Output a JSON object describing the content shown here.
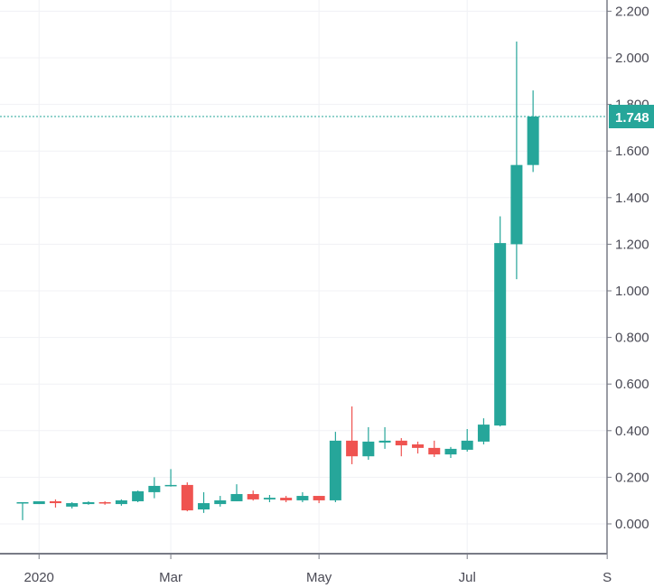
{
  "chart_data": {
    "type": "candlestick",
    "title": "",
    "xlabel": "",
    "ylabel": "",
    "ylim": [
      -0.08,
      2.25
    ],
    "grid": true,
    "colors": {
      "up": "#26a69a",
      "down": "#ef5350",
      "grid": "#f0f1f5",
      "axis": "#787b86",
      "text": "#4a4a55"
    },
    "yticks": [
      "0.000",
      "0.200",
      "0.400",
      "0.600",
      "0.800",
      "1.000",
      "1.200",
      "1.400",
      "1.600",
      "1.800",
      "2.000",
      "2.200"
    ],
    "yvalues": [
      0,
      0.2,
      0.4,
      0.6,
      0.8,
      1.0,
      1.2,
      1.4,
      1.6,
      1.8,
      2.0,
      2.2
    ],
    "xticks": [
      {
        "label": "2020",
        "index": 1
      },
      {
        "label": "Mar",
        "index": 9
      },
      {
        "label": "May",
        "index": 18
      },
      {
        "label": "Jul",
        "index": 27
      },
      {
        "label": "S",
        "index": 35.5
      }
    ],
    "last_price": {
      "label": "1.748",
      "value": 1.748
    },
    "candles_ohlc": [
      [
        0.093,
        0.093,
        0.016,
        0.093
      ],
      [
        0.085,
        0.097,
        0.085,
        0.097
      ],
      [
        0.097,
        0.105,
        0.07,
        0.089
      ],
      [
        0.074,
        0.093,
        0.066,
        0.089
      ],
      [
        0.085,
        0.097,
        0.082,
        0.093
      ],
      [
        0.093,
        0.097,
        0.082,
        0.089
      ],
      [
        0.085,
        0.105,
        0.078,
        0.101
      ],
      [
        0.097,
        0.143,
        0.093,
        0.14
      ],
      [
        0.136,
        0.2,
        0.11,
        0.163
      ],
      [
        0.163,
        0.235,
        0.16,
        0.167
      ],
      [
        0.167,
        0.178,
        0.054,
        0.058
      ],
      [
        0.062,
        0.136,
        0.047,
        0.089
      ],
      [
        0.085,
        0.12,
        0.074,
        0.101
      ],
      [
        0.097,
        0.17,
        0.097,
        0.128
      ],
      [
        0.128,
        0.143,
        0.1,
        0.105
      ],
      [
        0.105,
        0.124,
        0.093,
        0.112
      ],
      [
        0.112,
        0.12,
        0.093,
        0.101
      ],
      [
        0.101,
        0.136,
        0.093,
        0.12
      ],
      [
        0.12,
        0.12,
        0.089,
        0.101
      ],
      [
        0.101,
        0.395,
        0.093,
        0.357
      ],
      [
        0.357,
        0.504,
        0.256,
        0.29
      ],
      [
        0.29,
        0.415,
        0.275,
        0.353
      ],
      [
        0.349,
        0.415,
        0.322,
        0.357
      ],
      [
        0.357,
        0.368,
        0.29,
        0.337
      ],
      [
        0.341,
        0.353,
        0.302,
        0.326
      ],
      [
        0.326,
        0.357,
        0.287,
        0.298
      ],
      [
        0.298,
        0.33,
        0.283,
        0.322
      ],
      [
        0.318,
        0.407,
        0.31,
        0.357
      ],
      [
        0.353,
        0.453,
        0.341,
        0.426
      ],
      [
        0.422,
        1.32,
        0.418,
        1.205
      ],
      [
        1.2,
        2.07,
        1.05,
        1.54
      ],
      [
        1.54,
        1.86,
        1.51,
        1.748
      ]
    ]
  }
}
